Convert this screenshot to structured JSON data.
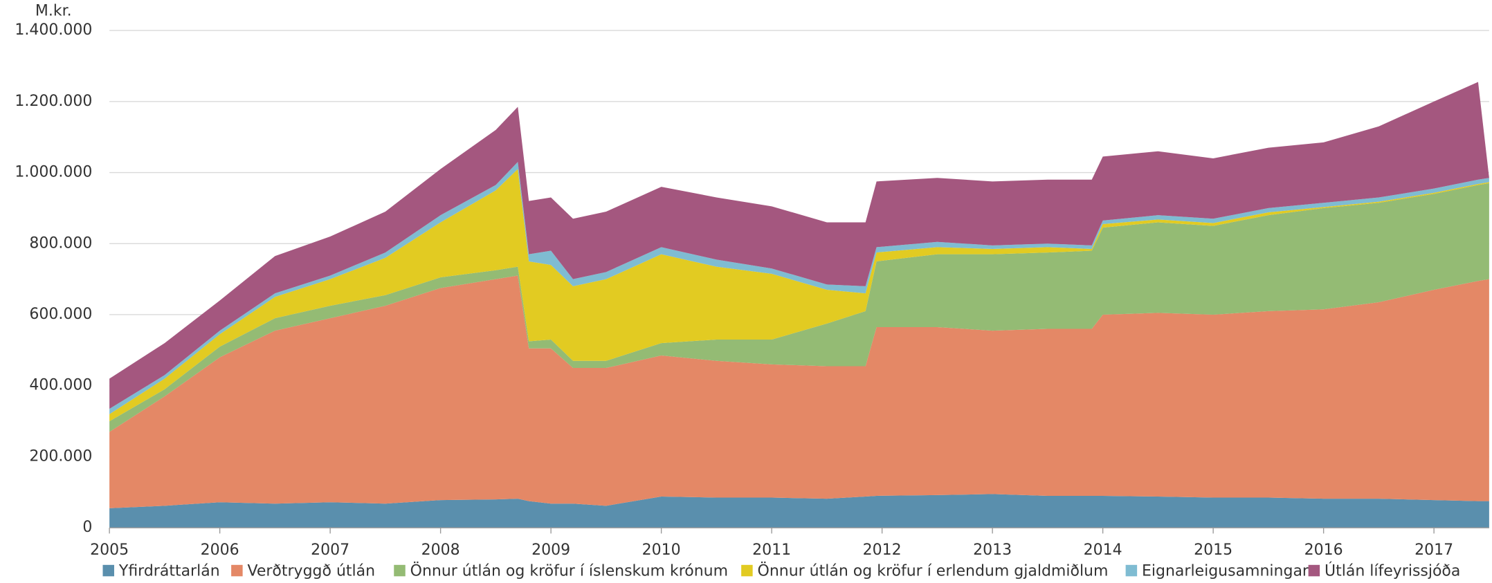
{
  "chart_data": {
    "type": "area",
    "stacked": true,
    "ylabel": "M.kr.",
    "x": [
      2005.0,
      2005.5,
      2006.0,
      2006.5,
      2007.0,
      2007.5,
      2008.0,
      2008.5,
      2008.7,
      2008.8,
      2009.0,
      2009.2,
      2009.5,
      2010.0,
      2010.5,
      2011.0,
      2011.5,
      2011.85,
      2011.95,
      2012.5,
      2013.0,
      2013.5,
      2013.9,
      2014.0,
      2014.5,
      2015.0,
      2015.5,
      2016.0,
      2016.5,
      2017.0,
      2017.4,
      2017.5
    ],
    "xlim": [
      2005,
      2017.5
    ],
    "xticks": [
      2005,
      2006,
      2007,
      2008,
      2009,
      2010,
      2011,
      2012,
      2013,
      2014,
      2015,
      2016,
      2017
    ],
    "ylim": [
      0,
      1400000
    ],
    "yticks": [
      0,
      {
        "value": 200000,
        "label": "200.000"
      },
      {
        "value": 400000,
        "label": "400.000"
      },
      {
        "value": 600000,
        "label": "600.000"
      },
      {
        "value": 800000,
        "label": "800.000"
      },
      {
        "value": 1000000,
        "label": "1.000.000"
      },
      {
        "value": 1200000,
        "label": "1.200.000"
      },
      {
        "value": 1400000,
        "label": "1.400.000"
      }
    ],
    "grid": true,
    "legend": "bottom",
    "series": [
      {
        "name": "Yfirdráttarlán",
        "color": "#5a8fad",
        "values": [
          55000,
          62000,
          72000,
          68000,
          72000,
          68000,
          78000,
          80000,
          82000,
          75000,
          68000,
          68000,
          62000,
          88000,
          85000,
          85000,
          82000,
          88000,
          90000,
          92000,
          95000,
          90000,
          90000,
          90000,
          88000,
          85000,
          85000,
          82000,
          82000,
          78000,
          75000,
          75000
        ]
      },
      {
        "name": "Verðtryggð útlán",
        "color": "#e48866",
        "values": [
          215000,
          308000,
          408000,
          487000,
          518000,
          557000,
          597000,
          620000,
          628000,
          430000,
          437000,
          382000,
          388000,
          397000,
          385000,
          375000,
          373000,
          367000,
          475000,
          473000,
          460000,
          470000,
          470000,
          510000,
          517000,
          515000,
          525000,
          533000,
          553000,
          592000,
          620000,
          625000
        ]
      },
      {
        "name": "Önnur útlán og kröfur í íslenskum krónum",
        "color": "#94bb74",
        "values": [
          30000,
          20000,
          30000,
          35000,
          35000,
          30000,
          30000,
          25000,
          25000,
          20000,
          25000,
          20000,
          20000,
          35000,
          60000,
          70000,
          120000,
          155000,
          185000,
          205000,
          215000,
          215000,
          220000,
          245000,
          255000,
          250000,
          270000,
          285000,
          280000,
          270000,
          270000,
          270000
        ]
      },
      {
        "name": "Önnur útlán og kröfur í erlendum gjaldmiðlum",
        "color": "#e2cb22",
        "values": [
          20000,
          30000,
          35000,
          60000,
          75000,
          105000,
          155000,
          225000,
          275000,
          225000,
          210000,
          210000,
          230000,
          250000,
          205000,
          185000,
          95000,
          50000,
          25000,
          20000,
          15000,
          15000,
          5000,
          10000,
          8000,
          8000,
          8000,
          3000,
          3000,
          3000,
          3000,
          3000
        ]
      },
      {
        "name": "Eignarleigusamningar",
        "color": "#7fbcd2",
        "values": [
          15000,
          10000,
          10000,
          10000,
          10000,
          15000,
          20000,
          15000,
          20000,
          20000,
          40000,
          20000,
          20000,
          20000,
          20000,
          15000,
          15000,
          20000,
          15000,
          15000,
          10000,
          10000,
          10000,
          10000,
          12000,
          12000,
          12000,
          12000,
          12000,
          12000,
          12000,
          12000
        ]
      },
      {
        "name": "Útlán lífeyrissjóða",
        "color": "#a4577f",
        "values": [
          85000,
          90000,
          85000,
          105000,
          110000,
          115000,
          130000,
          155000,
          155000,
          150000,
          150000,
          170000,
          170000,
          170000,
          175000,
          175000,
          175000,
          180000,
          185000,
          180000,
          180000,
          180000,
          185000,
          180000,
          180000,
          170000,
          170000,
          170000,
          200000,
          245000,
          275000,
          0
        ]
      }
    ]
  }
}
